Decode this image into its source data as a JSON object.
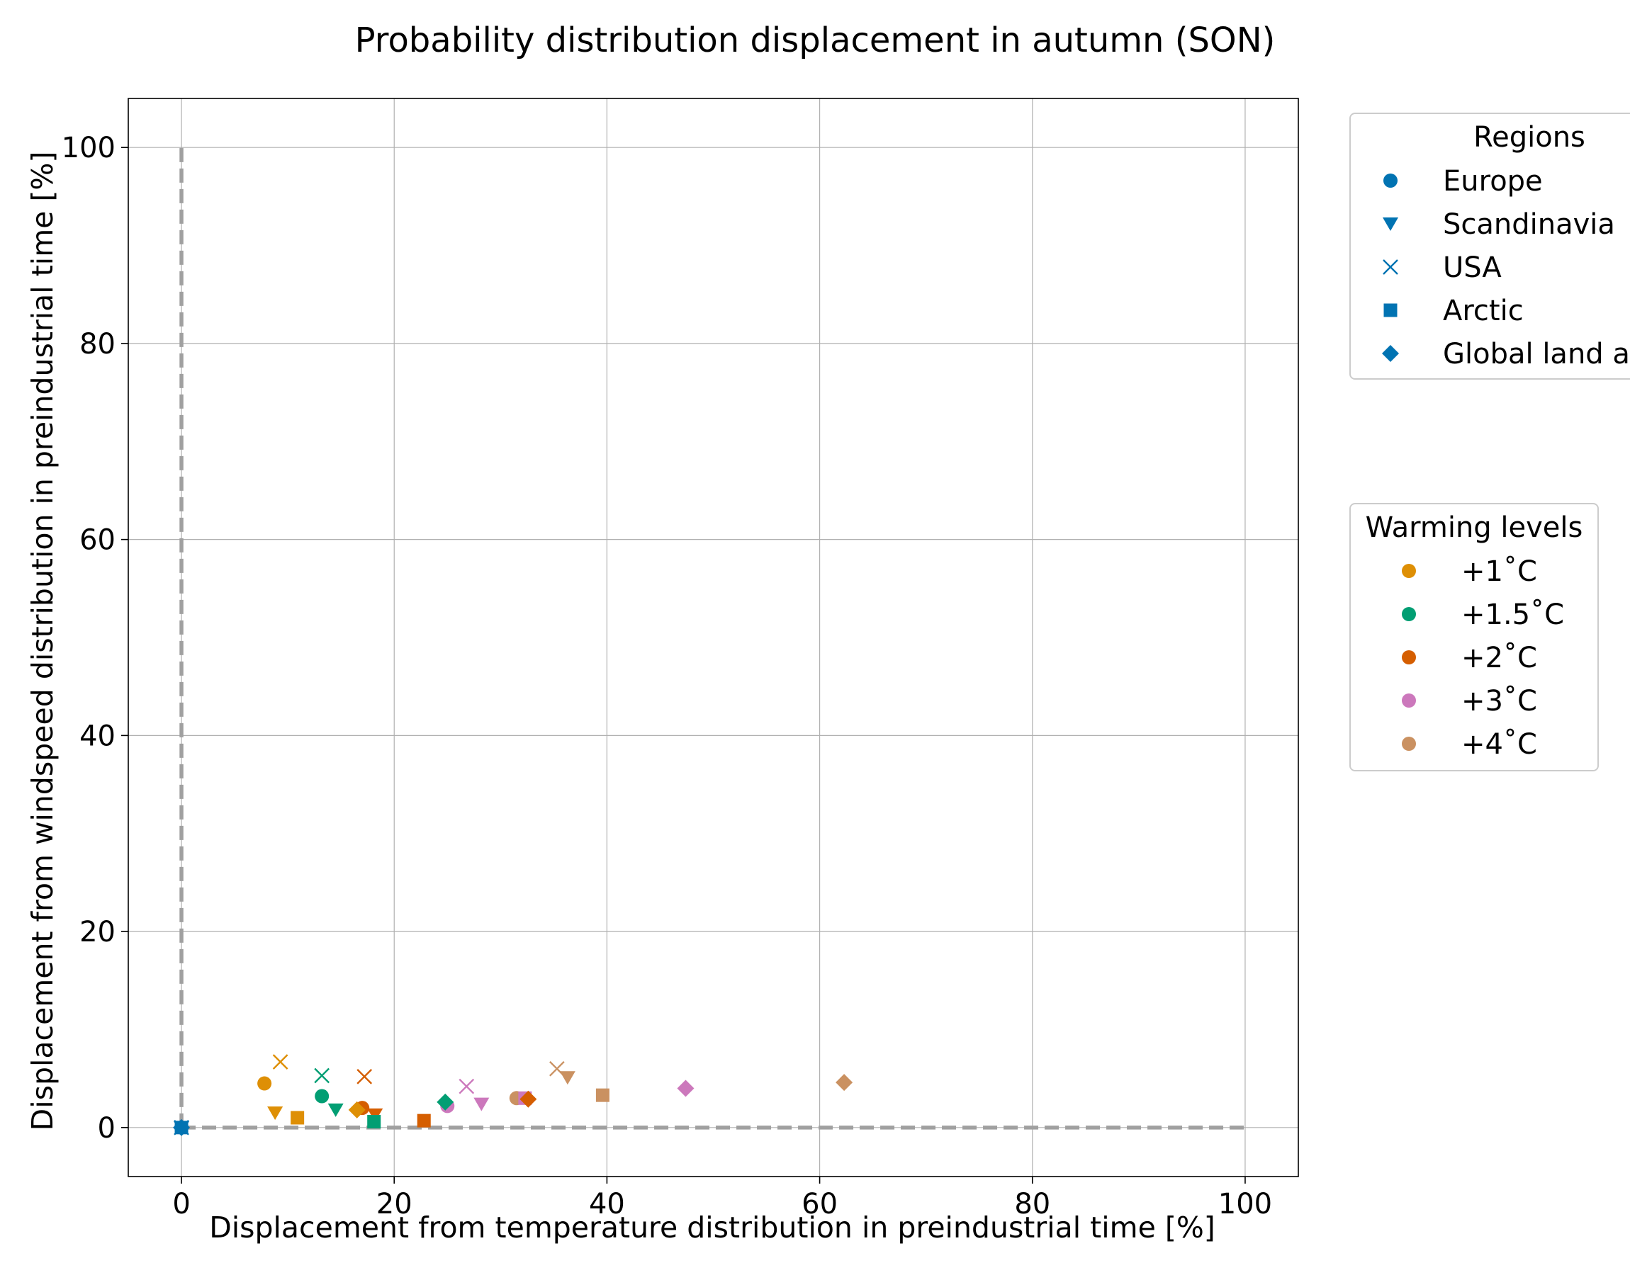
{
  "chart_data": {
    "type": "scatter",
    "title": "Probability distribution displacement in autumn (SON)",
    "xlabel": "Displacement from temperature distribution in preindustrial time [%]",
    "ylabel": "Displacement from windspeed distribution in preindustrial time [%]",
    "xlim": [
      -5,
      105
    ],
    "ylim": [
      -5,
      105
    ],
    "xticks": [
      "0",
      "20",
      "40",
      "60",
      "80",
      "100"
    ],
    "yticks": [
      "0",
      "20",
      "40",
      "60",
      "80",
      "100"
    ],
    "grid": true,
    "reference_lines": [
      {
        "style": "dashed",
        "color": "#a0a0a0",
        "points": [
          [
            0,
            0
          ],
          [
            0,
            100
          ]
        ]
      },
      {
        "style": "dashed",
        "color": "#a0a0a0",
        "points": [
          [
            0,
            0
          ],
          [
            100,
            0
          ]
        ]
      }
    ],
    "regions_legend": {
      "title": "Regions",
      "placement": "right-top",
      "entries": [
        {
          "label": "Europe",
          "marker": "circle"
        },
        {
          "label": "Scandinavia",
          "marker": "triangle-down"
        },
        {
          "label": "USA",
          "marker": "x"
        },
        {
          "label": "Arctic",
          "marker": "square"
        },
        {
          "label": "Global land a",
          "marker": "diamond"
        }
      ]
    },
    "warming_legend": {
      "title": "Warming levels",
      "placement": "right-middle",
      "entries": [
        {
          "label": "+1˚C",
          "color": "#de8f05"
        },
        {
          "label": "+1.5˚C",
          "color": "#029e73"
        },
        {
          "label": "+2˚C",
          "color": "#d55e00"
        },
        {
          "label": "+3˚C",
          "color": "#cc78bc"
        },
        {
          "label": "+4˚C",
          "color": "#ca9161"
        }
      ]
    },
    "legend_marker_color": "#0173b2",
    "baseline_color": "#0173b2",
    "series": [
      {
        "region": "Europe",
        "marker": "circle",
        "points": [
          {
            "x": 0,
            "y": 0,
            "level": "baseline"
          },
          {
            "x": 7.8,
            "y": 4.5,
            "level": "+1˚C"
          },
          {
            "x": 13.2,
            "y": 3.2,
            "level": "+1.5˚C"
          },
          {
            "x": 17.0,
            "y": 2.0,
            "level": "+2˚C"
          },
          {
            "x": 25.0,
            "y": 2.2,
            "level": "+3˚C"
          },
          {
            "x": 31.5,
            "y": 3.0,
            "level": "+4˚C"
          }
        ]
      },
      {
        "region": "Scandinavia",
        "marker": "triangle-down",
        "points": [
          {
            "x": 0,
            "y": 0,
            "level": "baseline"
          },
          {
            "x": 8.8,
            "y": 1.5,
            "level": "+1˚C"
          },
          {
            "x": 14.5,
            "y": 1.8,
            "level": "+1.5˚C"
          },
          {
            "x": 18.2,
            "y": 1.3,
            "level": "+2˚C"
          },
          {
            "x": 28.2,
            "y": 2.4,
            "level": "+3˚C"
          },
          {
            "x": 36.3,
            "y": 5.1,
            "level": "+4˚C"
          }
        ]
      },
      {
        "region": "USA",
        "marker": "x",
        "points": [
          {
            "x": 0,
            "y": 0,
            "level": "baseline"
          },
          {
            "x": 9.3,
            "y": 6.7,
            "level": "+1˚C"
          },
          {
            "x": 13.2,
            "y": 5.3,
            "level": "+1.5˚C"
          },
          {
            "x": 17.2,
            "y": 5.2,
            "level": "+2˚C"
          },
          {
            "x": 26.8,
            "y": 4.2,
            "level": "+3˚C"
          },
          {
            "x": 35.3,
            "y": 6.0,
            "level": "+4˚C"
          }
        ]
      },
      {
        "region": "Arctic",
        "marker": "square",
        "points": [
          {
            "x": 0,
            "y": 0,
            "level": "baseline"
          },
          {
            "x": 10.9,
            "y": 1.0,
            "level": "+1˚C"
          },
          {
            "x": 18.1,
            "y": 0.6,
            "level": "+1.5˚C"
          },
          {
            "x": 22.8,
            "y": 0.7,
            "level": "+2˚C"
          },
          {
            "x": 32.3,
            "y": 3.0,
            "level": "+3˚C"
          },
          {
            "x": 39.6,
            "y": 3.3,
            "level": "+4˚C"
          }
        ]
      },
      {
        "region": "Global land a",
        "marker": "diamond",
        "points": [
          {
            "x": 0,
            "y": 0,
            "level": "baseline"
          },
          {
            "x": 16.5,
            "y": 1.8,
            "level": "+1˚C"
          },
          {
            "x": 24.8,
            "y": 2.6,
            "level": "+1.5˚C"
          },
          {
            "x": 32.6,
            "y": 2.9,
            "level": "+2˚C"
          },
          {
            "x": 47.4,
            "y": 4.0,
            "level": "+3˚C"
          },
          {
            "x": 62.3,
            "y": 4.6,
            "level": "+4˚C"
          }
        ]
      }
    ]
  }
}
